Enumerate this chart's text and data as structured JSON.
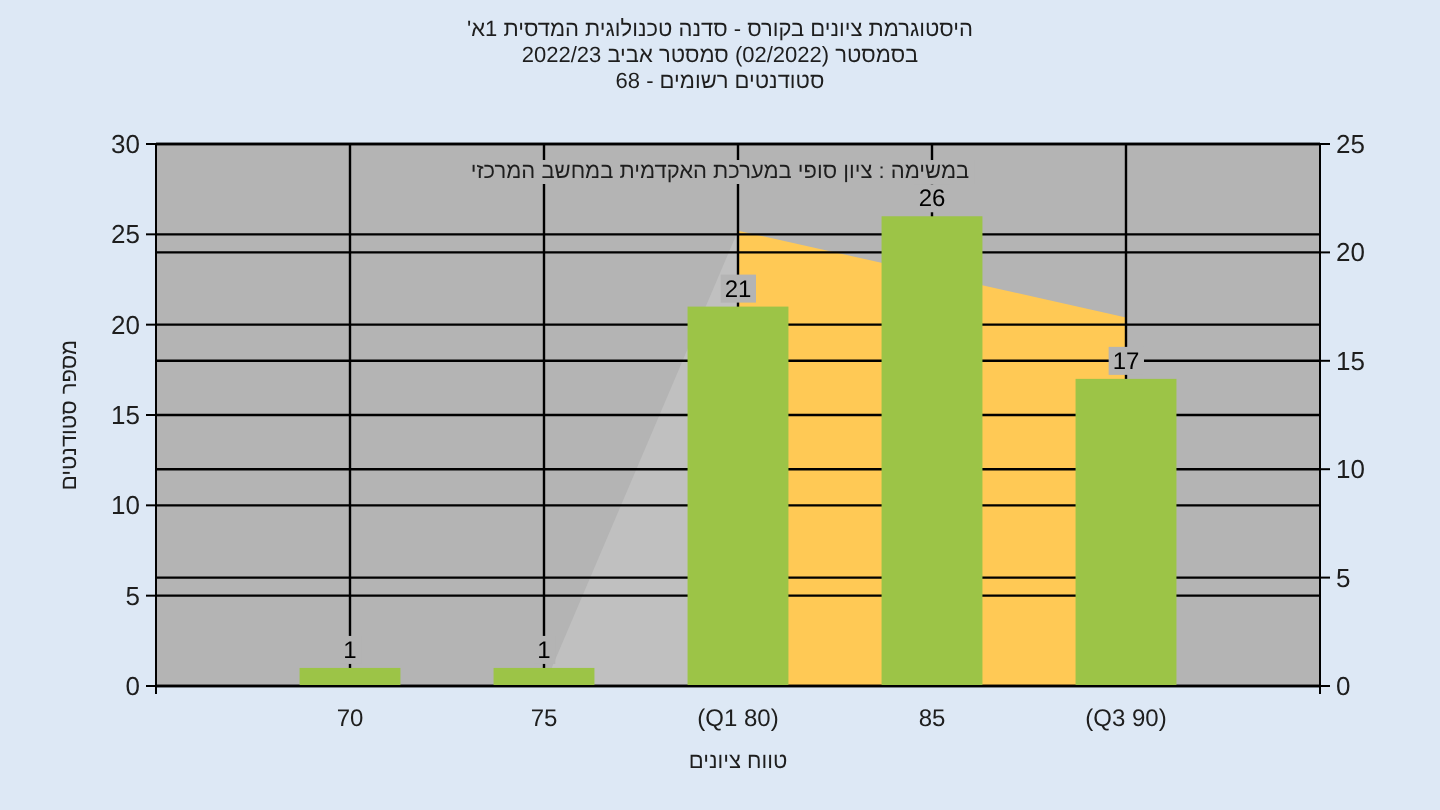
{
  "chart_data": {
    "type": "bar",
    "title": "'היסטוגרמת ציונים בקורס - סדנה טכנולוגית המדסית 1א",
    "subtitle": "בסמסטר  (02/2022)  סמסטר אביב 2022/23",
    "annotations": [
      "סטודנטים רשומים - 68",
      "במשימה : ציון סופי במערכת האקדמית במחשב המרכזי"
    ],
    "xlabel": "טווח ציונים",
    "ylabel": "מספר סטודנטים",
    "categories": [
      "70",
      "75",
      "(Q1 80)",
      "85",
      "(Q3 90)"
    ],
    "series": [
      {
        "type": "area",
        "axis": "y2",
        "color": "#c0c0c0",
        "values": [
          null,
          0,
          21,
          null,
          null
        ]
      },
      {
        "type": "area",
        "axis": "y2",
        "color": "#ffc955",
        "values": [
          null,
          null,
          21,
          null,
          17
        ]
      },
      {
        "color": "#9cc447",
        "values": [
          1,
          1,
          21,
          26,
          17
        ],
        "value_labels": [
          "1",
          "1",
          "21",
          "26",
          "17"
        ]
      }
    ],
    "ylim": [
      0,
      30
    ],
    "yticks": [
      0,
      5,
      10,
      15,
      20,
      25,
      30
    ],
    "y2lim": [
      0,
      25
    ],
    "y2ticks": [
      0,
      5,
      10,
      15,
      20,
      25
    ],
    "grid": true
  }
}
